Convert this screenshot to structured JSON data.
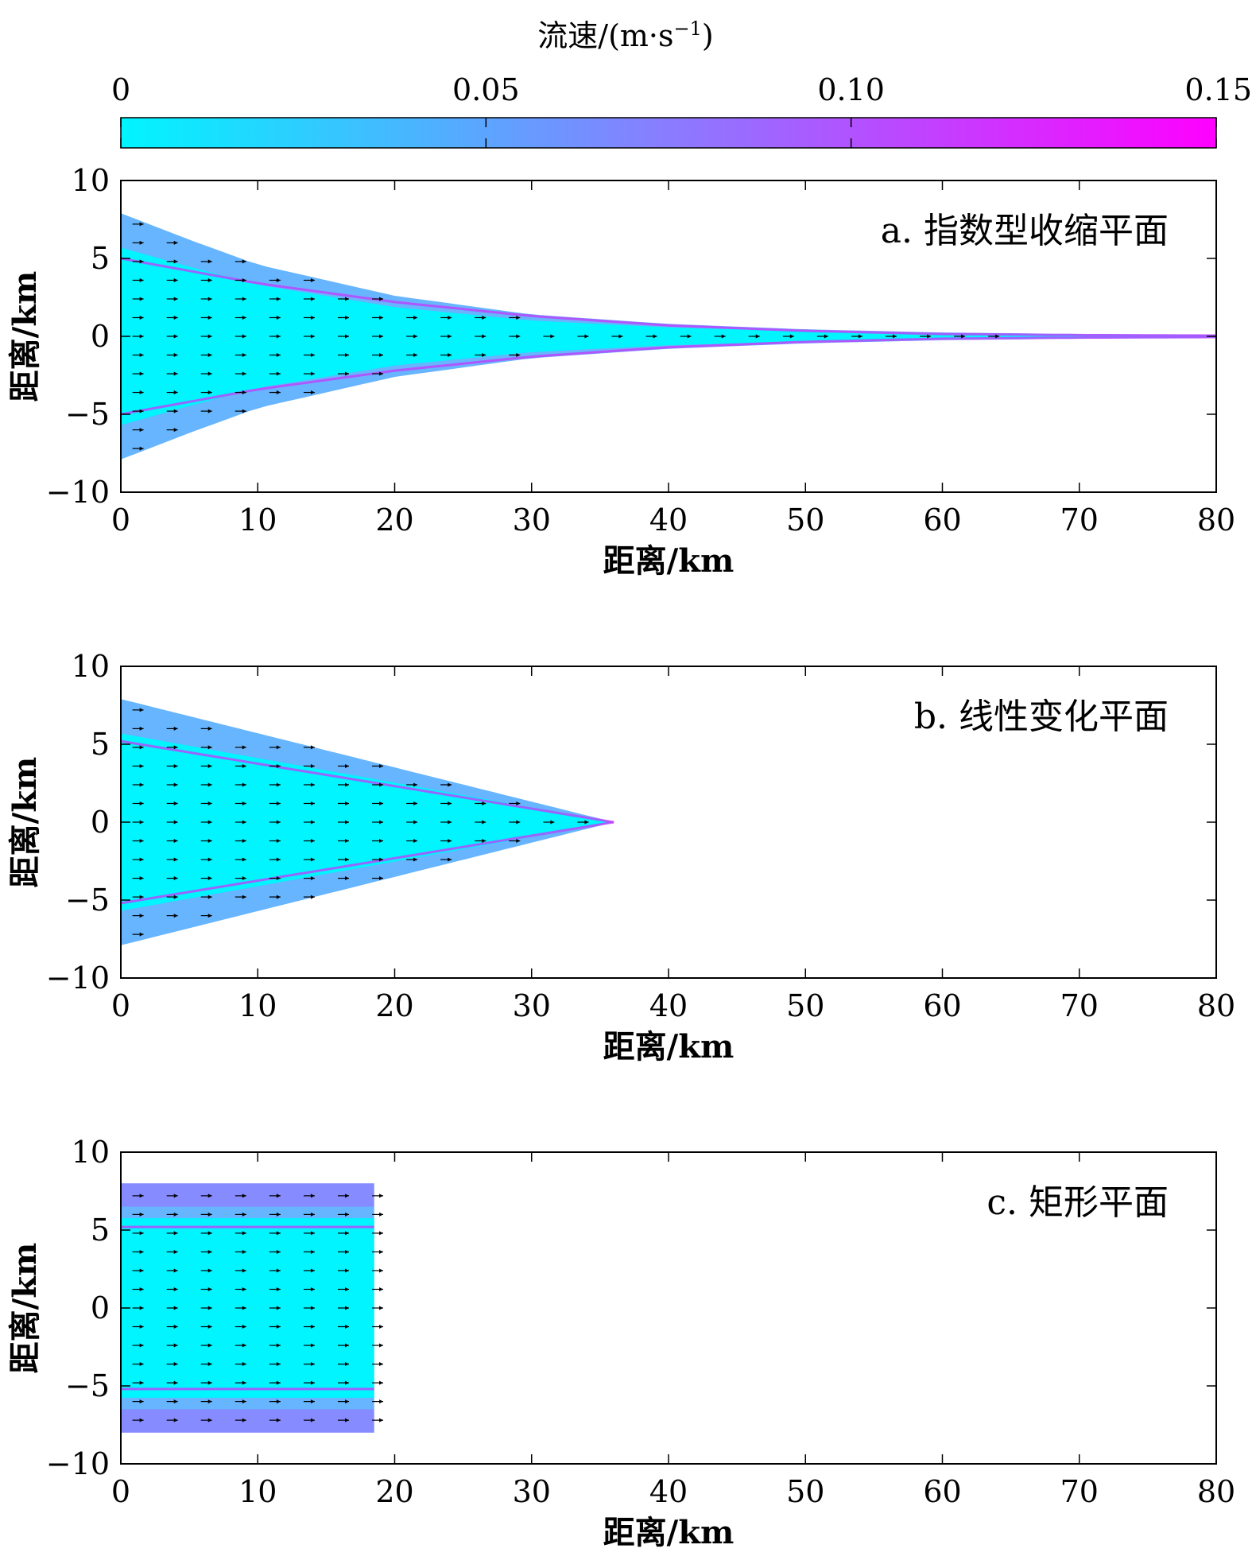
{
  "colorbar": {
    "title": "流速/(m·s",
    "title_sup": "−1",
    "title_close": ")",
    "ticks": [
      0,
      0.05,
      0.1,
      0.15
    ],
    "tick_labels": [
      "0",
      "0.05",
      "0.10",
      "0.15"
    ],
    "colors": [
      "#00f5ff",
      "#8a7cff",
      "#ff00ff"
    ]
  },
  "colors": {
    "low_speed": "#00f5ff",
    "mid_speed": "#5fb0ff",
    "high_speed": "#c040ff",
    "arrow": "#000000"
  },
  "chart_data": [
    {
      "type": "heatmap",
      "panel_label": "a. 指数型收缩平面",
      "shape": "exponential",
      "xlabel": "距离/km",
      "ylabel": "距离/km",
      "xlim": [
        0,
        80
      ],
      "ylim": [
        -10,
        10
      ],
      "xticks": [
        0,
        10,
        20,
        30,
        40,
        50,
        60,
        70,
        80
      ],
      "yticks": [
        -10,
        -5,
        0,
        5,
        10
      ],
      "half_width_points": [
        [
          0,
          7.9
        ],
        [
          5,
          6.2
        ],
        [
          10,
          4.6
        ],
        [
          20,
          2.6
        ],
        [
          30,
          1.4
        ],
        [
          40,
          0.8
        ],
        [
          50,
          0.45
        ],
        [
          60,
          0.25
        ],
        [
          70,
          0.15
        ],
        [
          80,
          0.1
        ]
      ],
      "channel_line_points": [
        [
          0,
          5.0
        ],
        [
          10,
          3.4
        ],
        [
          20,
          2.2
        ],
        [
          30,
          1.3
        ],
        [
          40,
          0.7
        ],
        [
          50,
          0.35
        ],
        [
          60,
          0.15
        ],
        [
          70,
          0.08
        ],
        [
          80,
          0.05
        ]
      ],
      "arrow_dx": 2.5,
      "arrow_dy": 1.2
    },
    {
      "type": "heatmap",
      "panel_label": "b. 线性变化平面",
      "shape": "linear",
      "xlabel": "距离/km",
      "ylabel": "距离/km",
      "xlim": [
        0,
        80
      ],
      "ylim": [
        -10,
        10
      ],
      "xticks": [
        0,
        10,
        20,
        30,
        40,
        50,
        60,
        70,
        80
      ],
      "yticks": [
        -10,
        -5,
        0,
        5,
        10
      ],
      "half_width_points": [
        [
          0,
          7.9
        ],
        [
          36,
          0
        ]
      ],
      "channel_line_points": [
        [
          0,
          5.2
        ],
        [
          36,
          0
        ]
      ],
      "arrow_dx": 2.5,
      "arrow_dy": 1.2
    },
    {
      "type": "heatmap",
      "panel_label": "c. 矩形平面",
      "shape": "rectangular",
      "xlabel": "距离/km",
      "ylabel": "距离/km",
      "xlim": [
        0,
        80
      ],
      "ylim": [
        -10,
        10
      ],
      "xticks": [
        0,
        10,
        20,
        30,
        40,
        50,
        60,
        70,
        80
      ],
      "yticks": [
        -10,
        -5,
        0,
        5,
        10
      ],
      "half_width_points": [
        [
          0,
          8.0
        ],
        [
          18.5,
          8.0
        ]
      ],
      "channel_line_points": [
        [
          0,
          5.2
        ],
        [
          18.5,
          5.2
        ]
      ],
      "arrow_dx": 2.5,
      "arrow_dy": 1.2
    }
  ]
}
